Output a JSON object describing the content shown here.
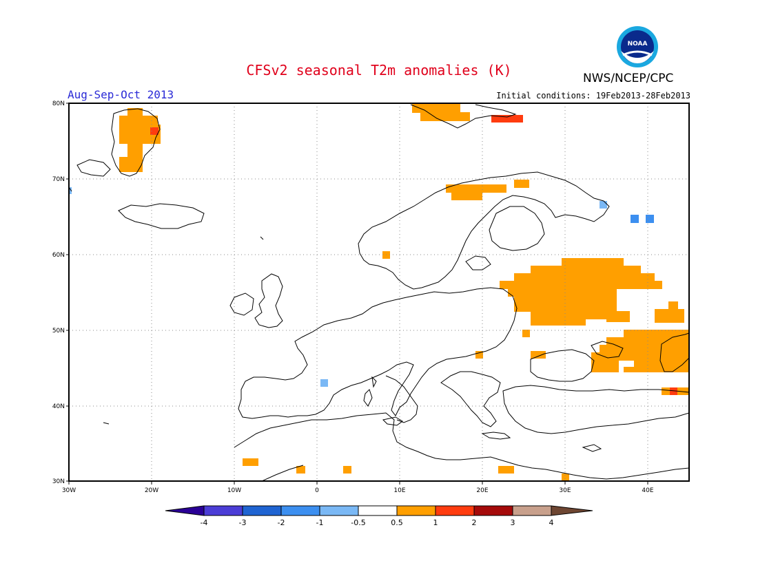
{
  "title": "CFSv2 seasonal T2m anomalies (K)",
  "agency": "NWS/NCEP/CPC",
  "logo_text": "NOAA",
  "season": "Aug-Sep-Oct 2013",
  "initial_conditions": "Initial conditions: 19Feb2013-28Feb2013",
  "lat_labels": [
    "80N",
    "70N",
    "60N",
    "50N",
    "40N",
    "30N"
  ],
  "lon_labels": [
    "30W",
    "20W",
    "10W",
    "0",
    "10E",
    "20E",
    "30E",
    "40E"
  ],
  "colorbar": {
    "labels": [
      "-4",
      "-3",
      "-2",
      "-1",
      "-0.5",
      "0.5",
      "1",
      "2",
      "3",
      "4"
    ],
    "colors": [
      "#2a0096",
      "#4b3dd6",
      "#1f64d2",
      "#3c8ff0",
      "#7ab8f5",
      "#ffffff",
      "#ff9f00",
      "#ff3c0f",
      "#a50a0a",
      "#c8a08c",
      "#6e4632"
    ]
  },
  "colors": {
    "orange": "#ff9f00",
    "red": "#ff3c0f",
    "lightblue": "#7ab8f5",
    "blue": "#3c8ff0",
    "title_red": "#e0001b",
    "label_blue": "#2a2ad6"
  }
}
